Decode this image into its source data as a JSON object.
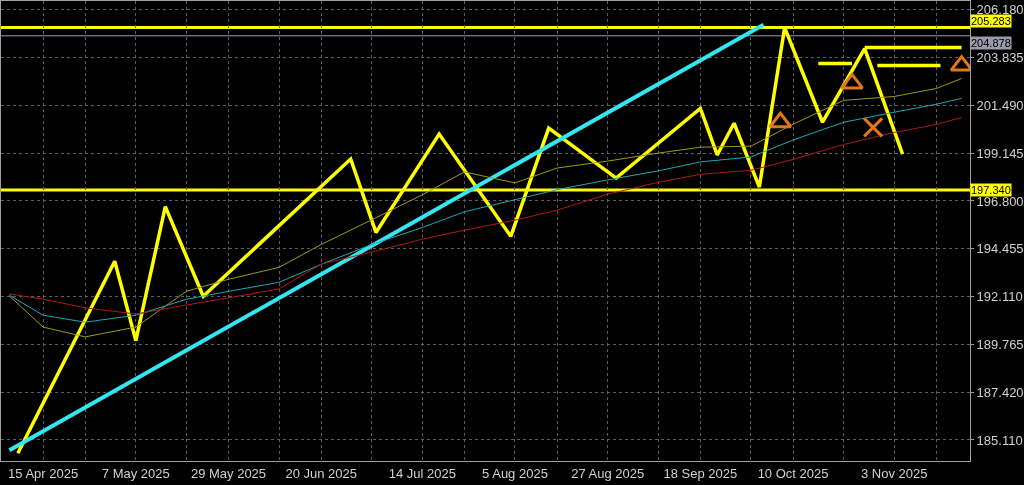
{
  "chart_data": {
    "type": "line",
    "xlim": [
      "2025-04-05",
      "2025-11-21"
    ],
    "xticks": [
      {
        "value": "2025-04-15",
        "label": "15 Apr 2025"
      },
      {
        "value": "2025-04-25",
        "label": null
      },
      {
        "value": "2025-05-07",
        "label": "7 May 2025"
      },
      {
        "value": "2025-05-19",
        "label": null
      },
      {
        "value": "2025-05-29",
        "label": "29 May 2025"
      },
      {
        "value": "2025-06-10",
        "label": null
      },
      {
        "value": "2025-06-20",
        "label": "20 Jun 2025"
      },
      {
        "value": "2025-07-02",
        "label": null
      },
      {
        "value": "2025-07-14",
        "label": "14 Jul 2025"
      },
      {
        "value": "2025-07-24",
        "label": null
      },
      {
        "value": "2025-08-05",
        "label": "5 Aug 2025"
      },
      {
        "value": "2025-08-15",
        "label": null
      },
      {
        "value": "2025-08-27",
        "label": "27 Aug 2025"
      },
      {
        "value": "2025-09-08",
        "label": null
      },
      {
        "value": "2025-09-18",
        "label": "18 Sep 2025"
      },
      {
        "value": "2025-09-30",
        "label": null
      },
      {
        "value": "2025-10-10",
        "label": "10 Oct 2025"
      },
      {
        "value": "2025-10-22",
        "label": null
      },
      {
        "value": "2025-11-03",
        "label": "3 Nov 2025"
      },
      {
        "value": "2025-11-13",
        "label": null
      }
    ],
    "ylim": [
      184.08,
      206.58
    ],
    "yticks": [
      {
        "value": 185.11,
        "label": "185.110"
      },
      {
        "value": 187.42,
        "label": "187.420"
      },
      189.765,
      {
        "value": 192.11,
        "label": "192.110"
      },
      194.455,
      {
        "value": 196.8,
        "label": "196.800"
      },
      199.145,
      {
        "value": 201.49,
        "label": "201.490"
      },
      203.835,
      {
        "value": 206.18,
        "label": "206.180"
      }
    ],
    "grid": true,
    "series": [
      {
        "color": "#ffff00",
        "x": [
          "2025-04-09",
          "2025-05-02",
          "2025-05-07",
          "2025-05-14",
          "2025-05-23",
          "2025-06-27",
          "2025-07-03",
          "2025-07-18",
          "2025-08-04",
          "2025-08-13",
          "2025-08-29",
          "2025-09-18",
          "2025-09-22",
          "2025-09-26",
          "2025-10-02",
          "2025-10-08",
          "2025-10-17",
          "2025-10-27",
          "2025-11-05"
        ],
        "values": [
          184.46,
          193.85,
          189.97,
          196.52,
          192.14,
          198.85,
          195.26,
          200.07,
          195.07,
          200.36,
          197.92,
          201.33,
          199.05,
          200.6,
          197.48,
          205.28,
          200.65,
          204.25,
          199.09
        ]
      },
      {
        "color": "#33e6f0",
        "x": [
          "2025-04-07",
          "2025-10-03"
        ],
        "values": [
          184.61,
          205.42
        ]
      },
      {
        "type": "line",
        "color": "#ffff00",
        "x": [
          "2025-10-16",
          "2025-10-24"
        ],
        "values": [
          203.52,
          203.52
        ]
      },
      {
        "type": "line",
        "color": "#ffff00",
        "x": [
          "2025-10-27",
          "2025-11-19"
        ],
        "values": [
          204.3,
          204.3
        ]
      },
      {
        "type": "line",
        "color": "#ffff00",
        "x": [
          "2025-10-30",
          "2025-11-14"
        ],
        "values": [
          203.42,
          203.42
        ]
      },
      {
        "type": "line",
        "color": "#a09a10",
        "x": [
          "2025-04-07",
          "2025-04-15",
          "2025-04-25",
          "2025-05-07",
          "2025-05-19",
          "2025-05-29",
          "2025-06-10",
          "2025-06-20",
          "2025-07-02",
          "2025-07-14",
          "2025-07-24",
          "2025-08-05",
          "2025-08-15",
          "2025-08-27",
          "2025-09-08",
          "2025-09-18",
          "2025-09-30",
          "2025-10-10",
          "2025-10-22",
          "2025-11-03",
          "2025-11-13",
          "2025-11-19"
        ],
        "values": [
          192.15,
          190.63,
          190.15,
          190.63,
          192.38,
          192.97,
          193.55,
          194.67,
          195.88,
          197.1,
          198.22,
          197.68,
          198.41,
          198.75,
          199.14,
          199.43,
          199.48,
          200.55,
          201.72,
          201.91,
          202.3,
          202.79
        ]
      },
      {
        "type": "line",
        "color": "#1fa8b5",
        "x": [
          "2025-04-07",
          "2025-04-15",
          "2025-04-25",
          "2025-05-07",
          "2025-05-19",
          "2025-05-29",
          "2025-06-10",
          "2025-06-20",
          "2025-07-02",
          "2025-07-14",
          "2025-07-24",
          "2025-08-05",
          "2025-08-15",
          "2025-08-27",
          "2025-09-08",
          "2025-09-18",
          "2025-09-30",
          "2025-10-10",
          "2025-10-22",
          "2025-11-03",
          "2025-11-13",
          "2025-11-19"
        ],
        "values": [
          192.19,
          191.21,
          190.87,
          191.21,
          191.99,
          192.38,
          192.82,
          193.7,
          194.67,
          195.5,
          196.27,
          196.86,
          197.35,
          197.83,
          198.27,
          198.71,
          198.95,
          199.78,
          200.65,
          201.14,
          201.53,
          201.82
        ]
      },
      {
        "type": "line",
        "color": "#b01818",
        "x": [
          "2025-04-07",
          "2025-04-15",
          "2025-04-25",
          "2025-05-07",
          "2025-05-19",
          "2025-05-29",
          "2025-06-10",
          "2025-06-20",
          "2025-07-02",
          "2025-07-14",
          "2025-07-24",
          "2025-08-05",
          "2025-08-15",
          "2025-08-27",
          "2025-09-08",
          "2025-09-18",
          "2025-09-30",
          "2025-10-10",
          "2025-10-22",
          "2025-11-03",
          "2025-11-13",
          "2025-11-19"
        ],
        "values": [
          192.25,
          192.0,
          191.57,
          191.27,
          191.71,
          192.06,
          192.5,
          193.71,
          194.3,
          194.93,
          195.37,
          195.86,
          196.35,
          197.13,
          197.71,
          198.1,
          198.3,
          198.83,
          199.56,
          200.15,
          200.54,
          200.88
        ]
      },
      {
        "type": "scatter",
        "marker": "triangle",
        "color": "#e0781a",
        "x": [
          "2025-10-07",
          "2025-10-24",
          "2025-11-19"
        ],
        "values": [
          200.65,
          202.55,
          203.42
        ]
      },
      {
        "type": "scatter",
        "marker": "cross",
        "color": "#e0781a",
        "x": [
          "2025-10-29"
        ],
        "values": [
          200.4
        ]
      }
    ],
    "ref_lines": [
      {
        "axis": "y",
        "value": 205.283,
        "label": "205.283",
        "color": "#ffff00"
      },
      {
        "axis": "y",
        "value": 197.34,
        "label": "197.340",
        "color": "#ffff00"
      },
      {
        "axis": "y",
        "value": 204.878,
        "label": "204.878",
        "color": "#9a9aaa"
      }
    ]
  }
}
